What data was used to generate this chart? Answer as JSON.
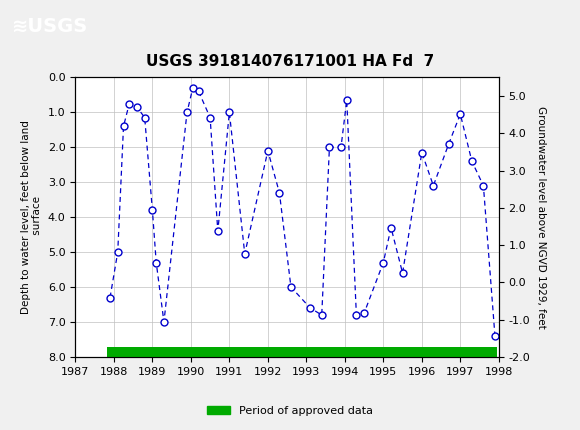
{
  "title": "USGS 391814076171001 HA Fd  7",
  "xlabel": "",
  "ylabel_left": "Depth to water level, feet below land\n surface",
  "ylabel_right": "Groundwater level above NGVD 1929, feet",
  "xlim": [
    1987,
    1998
  ],
  "ylim_left": [
    8.0,
    0.0
  ],
  "ylim_right": [
    -2.0,
    5.5
  ],
  "xticks": [
    1987,
    1988,
    1989,
    1990,
    1991,
    1992,
    1993,
    1994,
    1995,
    1996,
    1997,
    1998
  ],
  "yticks_left": [
    0.0,
    1.0,
    2.0,
    3.0,
    4.0,
    5.0,
    6.0,
    7.0,
    8.0
  ],
  "yticks_right": [
    -2.0,
    -1.0,
    0.0,
    1.0,
    2.0,
    3.0,
    4.0,
    5.0
  ],
  "data_x": [
    1987.9,
    1988.1,
    1988.25,
    1988.4,
    1988.6,
    1988.8,
    1989.0,
    1989.1,
    1989.3,
    1989.9,
    1990.05,
    1990.2,
    1990.5,
    1990.7,
    1991.0,
    1991.4,
    1992.0,
    1992.3,
    1992.6,
    1993.1,
    1993.4,
    1993.6,
    1993.9,
    1994.05,
    1994.3,
    1994.5,
    1995.0,
    1995.2,
    1995.5,
    1996.0,
    1996.3,
    1996.7,
    1997.0,
    1997.3,
    1997.6,
    1997.9
  ],
  "data_y": [
    6.3,
    5.0,
    1.4,
    0.75,
    0.85,
    1.15,
    3.8,
    5.3,
    7.0,
    1.0,
    0.3,
    0.4,
    1.15,
    4.4,
    1.0,
    5.05,
    2.1,
    3.3,
    6.0,
    6.6,
    6.8,
    2.0,
    2.0,
    0.65,
    6.8,
    6.75,
    5.3,
    4.3,
    5.6,
    2.15,
    3.1,
    1.9,
    1.05,
    2.4,
    3.1,
    7.4
  ],
  "line_color": "#0000cc",
  "marker_color": "#0000cc",
  "marker_face": "white",
  "approved_bar_color": "#00aa00",
  "approved_bar_y": 8.0,
  "approved_bar_xstart": 1987.83,
  "approved_bar_xend": 1997.95,
  "header_bg_color": "#1a6b3c",
  "background_color": "#f0f0f0",
  "plot_bg_color": "#ffffff",
  "grid_color": "#c0c0c0",
  "legend_label": "Period of approved data"
}
